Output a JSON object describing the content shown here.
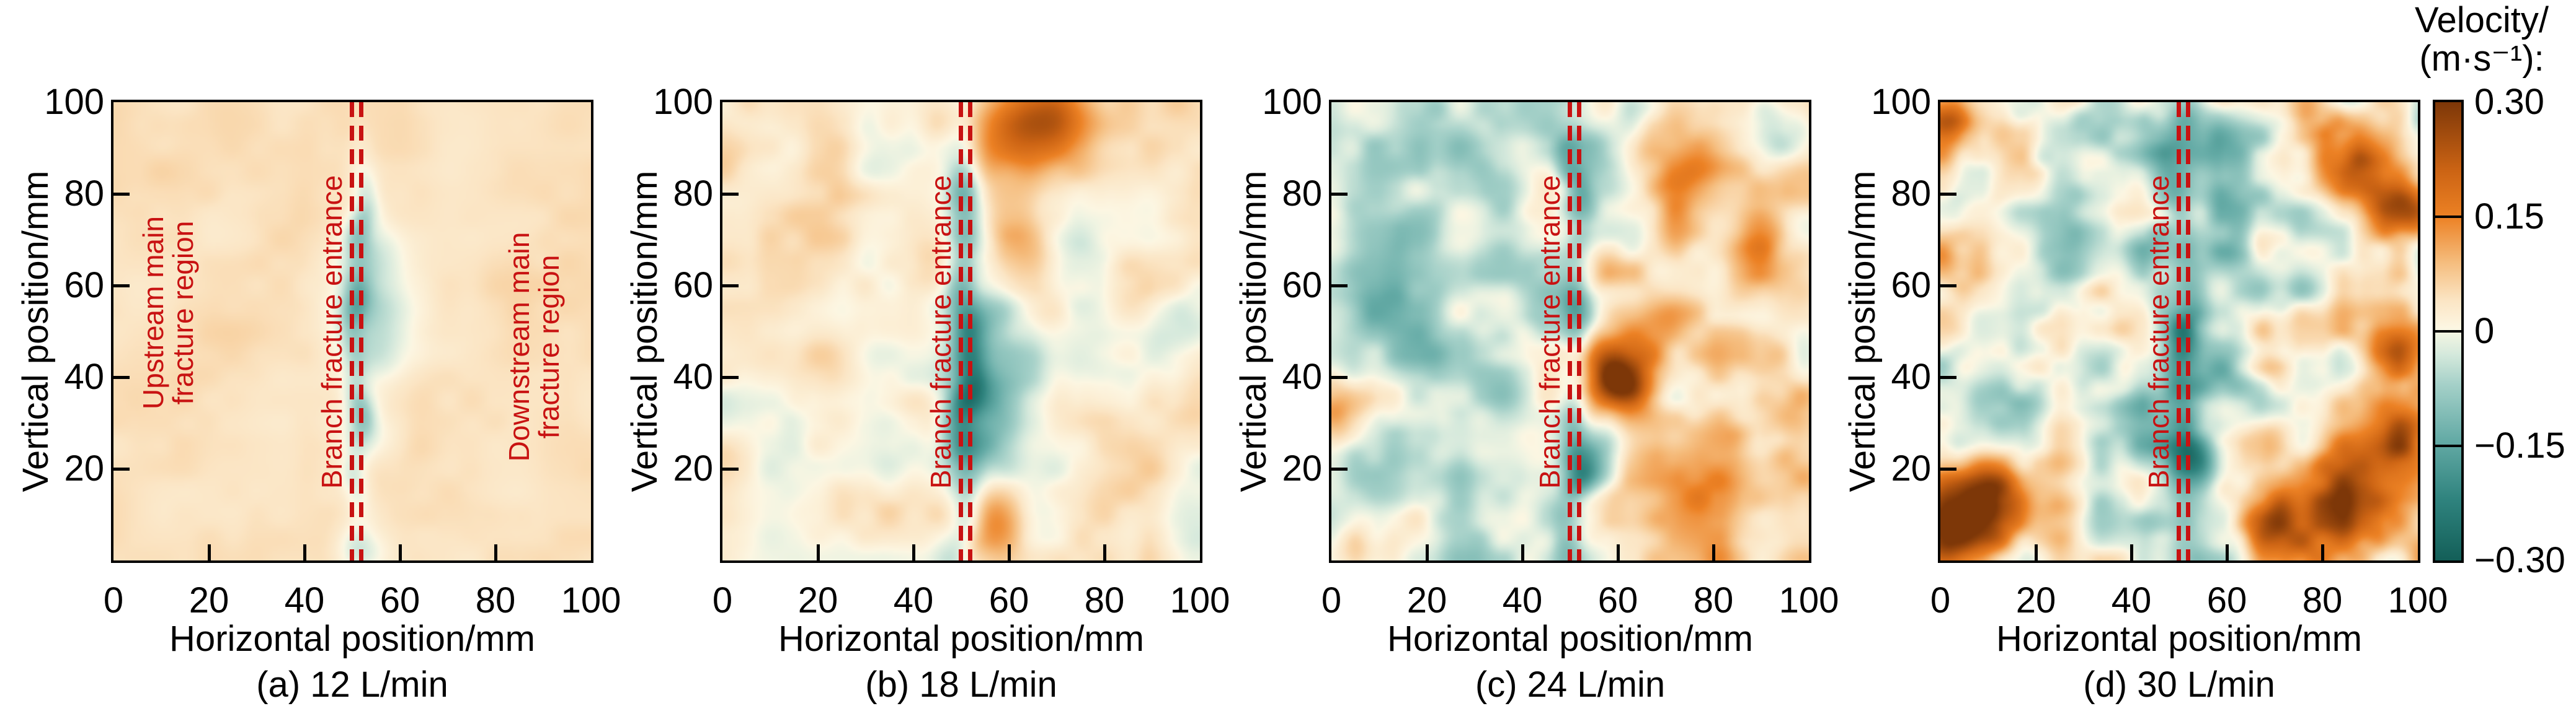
{
  "colors": {
    "annotation_red": "#c81212",
    "axis_black": "#000000",
    "background": "#ffffff"
  },
  "colorbar": {
    "title_line1": "Velocity/",
    "title_line2": "(m·s⁻¹):",
    "tick_labels": [
      "0.30",
      "0.15",
      "0",
      "−0.15",
      "−0.30"
    ]
  },
  "chart_data": {
    "type": "heatmap",
    "xlabel": "Horizontal position/mm",
    "ylabel": "Vertical position/mm",
    "xlim": [
      0,
      100
    ],
    "ylim": [
      0,
      100
    ],
    "x_ticks": [
      0,
      20,
      40,
      60,
      80,
      100
    ],
    "x_tick_labels": [
      "0",
      "20",
      "40",
      "60",
      "80",
      "100"
    ],
    "y_ticks": [
      20,
      40,
      60,
      80,
      100
    ],
    "y_tick_labels": [
      "20",
      "40",
      "60",
      "80",
      "100"
    ],
    "grid": false,
    "colorbar": {
      "label": "Velocity/(m·s⁻¹)",
      "range": [
        -0.3,
        0.3
      ],
      "ticks": [
        0.3,
        0.15,
        0,
        -0.15,
        -0.3
      ],
      "segment_lines_at": [
        0.15,
        0,
        -0.15
      ]
    },
    "colormap": [
      [
        -0.3,
        "#135f58"
      ],
      [
        -0.22,
        "#2f837e"
      ],
      [
        -0.14,
        "#66aca7"
      ],
      [
        -0.07,
        "#a4d0c8"
      ],
      [
        -0.03,
        "#d5e9dc"
      ],
      [
        -0.005,
        "#f0f4e2"
      ],
      [
        0.005,
        "#fcf6e2"
      ],
      [
        0.04,
        "#fbe5c4"
      ],
      [
        0.09,
        "#f5bd7e"
      ],
      [
        0.15,
        "#ec8124"
      ],
      [
        0.21,
        "#cc6414"
      ],
      [
        0.3,
        "#7d3708"
      ]
    ],
    "branch_entrance_lines_x_mm": [
      50,
      52
    ],
    "panels": [
      {
        "id": "a",
        "label": "(a) 12 L/min",
        "flow_rate": "12 L/min",
        "upstream": "Upstream main\nfracture region",
        "branch": "Branch fracture entrance",
        "downstream": "Downstream main\nfracture region",
        "description": "Nearly uniform weak positive velocity (~+0.05 m/s, pale peach) with a narrow negative (teal) streak along the branch fracture entrance near x=50 mm, strongest between y=25 and y=75 mm.",
        "field": {
          "seed": 11,
          "base": 0.045,
          "amp1": 0.013,
          "scale1": 12,
          "amp2": 0.006,
          "scale2": 5,
          "band": {
            "x": 51.5,
            "w": 2.0,
            "v": -0.1,
            "cy": 48,
            "ey": 33
          },
          "blobs": [
            {
              "x": 54,
              "y": 55,
              "r": 6,
              "v": -0.09
            },
            {
              "x": 54,
              "y": 67,
              "r": 5,
              "v": -0.07
            },
            {
              "x": 53,
              "y": 27,
              "r": 4.5,
              "v": -0.065
            },
            {
              "x": 52,
              "y": 2,
              "r": 4,
              "v": -0.07
            },
            {
              "x": 56,
              "y": 44,
              "r": 5,
              "v": -0.06
            }
          ]
        }
      },
      {
        "id": "b",
        "label": "(b) 18 L/min",
        "flow_rate": "18 L/min",
        "branch": "Branch fracture entrance",
        "description": "Pale cream upstream region with mild speckle; stronger teal band along x≈50 mm with a large negative blob near (55,38); orange positive patches downstream, strongest near the top right around (62,93).",
        "field": {
          "seed": 22,
          "base": 0.025,
          "amp1": 0.045,
          "scale1": 11,
          "amp2": 0.018,
          "scale2": 5,
          "band": {
            "x": 50.5,
            "w": 2.6,
            "v": -0.13,
            "cy": 50,
            "ey": 60
          },
          "blobs": [
            {
              "x": 55,
              "y": 38,
              "r": 7,
              "v": -0.15
            },
            {
              "x": 54,
              "y": 25,
              "r": 5,
              "v": -0.1
            },
            {
              "x": 56,
              "y": 52,
              "r": 5,
              "v": -0.08
            },
            {
              "x": 62,
              "y": 93,
              "r": 8,
              "v": 0.16
            },
            {
              "x": 71,
              "y": 97,
              "r": 6,
              "v": 0.09
            },
            {
              "x": 61,
              "y": 74,
              "r": 5,
              "v": 0.09
            },
            {
              "x": 57,
              "y": 8,
              "r": 5,
              "v": 0.09
            },
            {
              "x": 74,
              "y": 66,
              "r": 6,
              "v": -0.07
            },
            {
              "x": 95,
              "y": 48,
              "r": 5,
              "v": -0.06
            },
            {
              "x": 88,
              "y": 20,
              "r": 7,
              "v": 0.05
            },
            {
              "x": 85,
              "y": 60,
              "r": 6,
              "v": 0.05
            },
            {
              "x": 15,
              "y": 70,
              "r": 9,
              "v": 0.03
            }
          ]
        }
      },
      {
        "id": "c",
        "label": "(c) 24 L/min",
        "flow_rate": "24 L/min",
        "branch": "Branch fracture entrance",
        "description": "Patchy teal (negative) field over most of the upstream half; teal band at x≈50 mm with a dark negative spot near (55,24); strong orange positives downstream, darkest near (60,40), plus orange patches along the right side and top right.",
        "field": {
          "seed": 33,
          "base": 0.01,
          "amp1": 0.07,
          "scale1": 9,
          "amp2": 0.025,
          "scale2": 4.5,
          "bands_x": [
            {
              "x0": 0,
              "x1": 44,
              "v": -0.05,
              "feather": 6
            },
            {
              "x0": 57,
              "x1": 100,
              "v": 0.025,
              "feather": 6
            }
          ],
          "band": {
            "x": 50.5,
            "w": 2.4,
            "v": -0.12,
            "cy": 50,
            "ey": 60
          },
          "blobs": [
            {
              "x": 55,
              "y": 24,
              "r": 4.5,
              "v": -0.16
            },
            {
              "x": 60,
              "y": 40,
              "r": 4.5,
              "v": 0.24
            },
            {
              "x": 65,
              "y": 47,
              "r": 6,
              "v": 0.12
            },
            {
              "x": 74,
              "y": 86,
              "r": 7,
              "v": 0.13
            },
            {
              "x": 88,
              "y": 64,
              "r": 7,
              "v": 0.1
            },
            {
              "x": 93,
              "y": 32,
              "r": 6,
              "v": 0.09
            },
            {
              "x": 80,
              "y": 12,
              "r": 7,
              "v": 0.08
            },
            {
              "x": 2,
              "y": 32,
              "r": 5,
              "v": 0.13
            },
            {
              "x": 6,
              "y": 6,
              "r": 6,
              "v": 0.09
            },
            {
              "x": 94,
              "y": 94,
              "r": 5,
              "v": -0.1
            },
            {
              "x": 58,
              "y": 90,
              "r": 5,
              "v": -0.08
            },
            {
              "x": 25,
              "y": 90,
              "r": 8,
              "v": -0.06
            },
            {
              "x": 12,
              "y": 60,
              "r": 8,
              "v": -0.05
            },
            {
              "x": 30,
              "y": 45,
              "r": 8,
              "v": -0.05
            }
          ]
        }
      },
      {
        "id": "d",
        "label": "(d) 30 L/min",
        "flow_rate": "30 L/min",
        "branch": "Branch fracture entrance",
        "description": "Strongest fluctuations: dark brown positive region at the bottom-left corner, large orange positives across the bottom-right and right edge and top-right, teal negative zone around the branch entrance band near x≈50–60 mm, mixed teal/cream elsewhere.",
        "field": {
          "seed": 44,
          "base": 0.005,
          "amp1": 0.085,
          "scale1": 8.5,
          "amp2": 0.035,
          "scale2": 4.2,
          "bands_x": [
            {
              "x0": 47,
              "x1": 60,
              "v": -0.055,
              "feather": 4
            },
            {
              "x0": 64,
              "x1": 100,
              "v": 0.02,
              "feather": 5
            }
          ],
          "band": {
            "x": 50.8,
            "w": 2.6,
            "v": -0.11,
            "cy": 50,
            "ey": 60
          },
          "blobs": [
            {
              "x": 5,
              "y": 8,
              "r": 8,
              "v": 0.32
            },
            {
              "x": 13,
              "y": 16,
              "r": 6,
              "v": 0.18
            },
            {
              "x": 1,
              "y": 62,
              "r": 4,
              "v": 0.12
            },
            {
              "x": 1,
              "y": 95,
              "r": 4,
              "v": 0.18
            },
            {
              "x": 86,
              "y": 12,
              "r": 9,
              "v": 0.24
            },
            {
              "x": 97,
              "y": 26,
              "r": 5,
              "v": 0.2
            },
            {
              "x": 70,
              "y": 7,
              "r": 6,
              "v": 0.13
            },
            {
              "x": 95,
              "y": 45,
              "r": 5,
              "v": 0.2
            },
            {
              "x": 88,
              "y": 84,
              "r": 6,
              "v": 0.2
            },
            {
              "x": 98,
              "y": 76,
              "r": 4,
              "v": 0.15
            },
            {
              "x": 79,
              "y": 95,
              "r": 4,
              "v": 0.12
            },
            {
              "x": 54,
              "y": 21,
              "r": 4,
              "v": -0.18
            },
            {
              "x": 57,
              "y": 88,
              "r": 6,
              "v": -0.12
            },
            {
              "x": 66,
              "y": 60,
              "r": 5,
              "v": -0.09
            },
            {
              "x": 76,
              "y": 70,
              "r": 5,
              "v": -0.07
            },
            {
              "x": 30,
              "y": 72,
              "r": 7,
              "v": -0.08
            },
            {
              "x": 15,
              "y": 40,
              "r": 6,
              "v": -0.06
            },
            {
              "x": 44,
              "y": 90,
              "r": 5,
              "v": -0.09
            },
            {
              "x": 36,
              "y": 30,
              "r": 5,
              "v": -0.05
            },
            {
              "x": 60,
              "y": 40,
              "r": 5,
              "v": -0.1
            }
          ]
        }
      }
    ]
  }
}
